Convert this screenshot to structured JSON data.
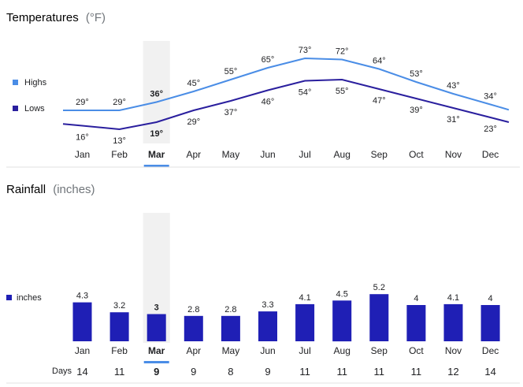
{
  "colors": {
    "highs": "#4a8de6",
    "lows": "#2a1f9e",
    "bars": "#1f1fb5",
    "selected_band": "#f1f1f1",
    "selected_underline": "#4a8de6",
    "divider": "#e0e0e0",
    "text": "#202124",
    "muted": "#70757a"
  },
  "selected_month": "Mar",
  "chart_data": [
    {
      "type": "line",
      "title": "Temperatures",
      "unit_label": "(°F)",
      "categories": [
        "Jan",
        "Feb",
        "Mar",
        "Apr",
        "May",
        "Jun",
        "Jul",
        "Aug",
        "Sep",
        "Oct",
        "Nov",
        "Dec"
      ],
      "series": [
        {
          "name": "Highs",
          "values": [
            29,
            29,
            36,
            45,
            55,
            65,
            73,
            72,
            64,
            53,
            43,
            34
          ],
          "labels": [
            "29°",
            "29°",
            "36°",
            "45°",
            "55°",
            "65°",
            "73°",
            "72°",
            "64°",
            "53°",
            "43°",
            "34°"
          ]
        },
        {
          "name": "Lows",
          "values": [
            16,
            13,
            19,
            29,
            37,
            46,
            54,
            55,
            47,
            39,
            31,
            23
          ],
          "labels": [
            "16°",
            "13°",
            "19°",
            "29°",
            "37°",
            "46°",
            "54°",
            "55°",
            "47°",
            "39°",
            "31°",
            "23°"
          ]
        }
      ],
      "legend_position": "left"
    },
    {
      "type": "bar",
      "title": "Rainfall",
      "unit_label": "(inches)",
      "categories": [
        "Jan",
        "Feb",
        "Mar",
        "Apr",
        "May",
        "Jun",
        "Jul",
        "Aug",
        "Sep",
        "Oct",
        "Nov",
        "Dec"
      ],
      "series": [
        {
          "name": "inches",
          "values": [
            4.3,
            3.2,
            3,
            2.8,
            2.8,
            3.3,
            4.1,
            4.5,
            5.2,
            4,
            4.1,
            4
          ],
          "labels": [
            "4.3",
            "3.2",
            "3",
            "2.8",
            "2.8",
            "3.3",
            "4.1",
            "4.5",
            "5.2",
            "4",
            "4.1",
            "4"
          ]
        }
      ],
      "days_label": "Days",
      "days": [
        "14",
        "11",
        "9",
        "9",
        "8",
        "9",
        "11",
        "11",
        "11",
        "11",
        "12",
        "14"
      ],
      "legend_position": "left"
    }
  ]
}
